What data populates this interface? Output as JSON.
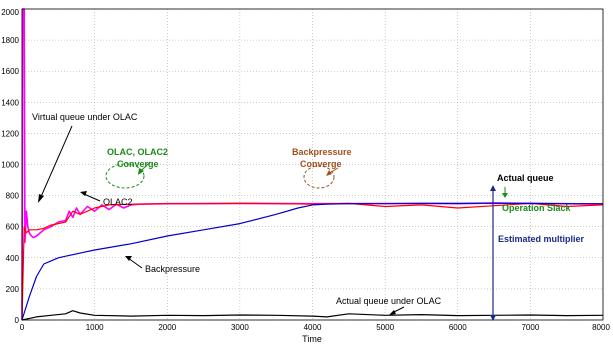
{
  "chart_data": {
    "type": "line",
    "xlabel": "Time",
    "ylabel": "",
    "xlim": [
      0,
      8000
    ],
    "ylim": [
      0,
      2000
    ],
    "xticks": [
      0,
      1000,
      2000,
      3000,
      4000,
      5000,
      6000,
      7000,
      8000
    ],
    "yticks": [
      0,
      200,
      400,
      600,
      800,
      1000,
      1200,
      1400,
      1600,
      1800,
      2000
    ],
    "grid": true,
    "series": [
      {
        "label": "Virtual queue under OLAC",
        "color": "#ff00ff",
        "x": [
          0,
          10,
          30,
          40,
          60,
          80,
          100,
          130,
          160,
          200,
          250,
          300,
          400,
          500,
          600,
          650,
          700,
          750,
          800,
          900,
          1000,
          1100,
          1200,
          1300,
          1400,
          1500,
          1600,
          2000,
          3000,
          4000,
          5000,
          5500,
          6000,
          6500,
          7000,
          7500,
          8000
        ],
        "y": [
          0,
          2000,
          2000,
          500,
          700,
          600,
          560,
          540,
          530,
          540,
          560,
          580,
          600,
          630,
          640,
          700,
          660,
          720,
          680,
          730,
          700,
          740,
          710,
          745,
          720,
          740,
          745,
          748,
          750,
          748,
          749,
          750,
          748,
          752,
          750,
          748,
          745
        ]
      },
      {
        "label": "OLAC2",
        "color": "#ff0000",
        "x": [
          0,
          30,
          60,
          100,
          200,
          300,
          400,
          500,
          600,
          700,
          800,
          1000,
          1200,
          1500,
          2000,
          2500,
          3000,
          3500,
          4000,
          4500,
          5000,
          5500,
          6000,
          6500,
          7000,
          7500,
          8000
        ],
        "y": [
          0,
          600,
          560,
          580,
          580,
          590,
          610,
          620,
          630,
          700,
          680,
          720,
          740,
          745,
          748,
          748,
          750,
          748,
          745,
          750,
          730,
          740,
          720,
          735,
          750,
          730,
          740
        ]
      },
      {
        "label": "Backpressure",
        "color": "#0000cc",
        "x": [
          0,
          100,
          200,
          300,
          400,
          500,
          600,
          700,
          800,
          1000,
          1500,
          2000,
          2500,
          3000,
          3500,
          3800,
          4000,
          4200,
          4500,
          5000,
          5500,
          6000,
          6500,
          7000,
          7500,
          8000
        ],
        "y": [
          0,
          150,
          280,
          360,
          380,
          400,
          410,
          420,
          430,
          450,
          490,
          540,
          580,
          620,
          680,
          720,
          740,
          745,
          748,
          748,
          750,
          750,
          752,
          750,
          748,
          748
        ]
      },
      {
        "label": "Actual queue under OLAC",
        "color": "#000000",
        "x": [
          0,
          200,
          400,
          600,
          700,
          800,
          1000,
          1500,
          2000,
          2500,
          3000,
          3500,
          4000,
          4200,
          4500,
          5000,
          5500,
          6000,
          6500,
          7000,
          7500,
          8000
        ],
        "y": [
          0,
          20,
          30,
          40,
          60,
          45,
          30,
          25,
          30,
          28,
          32,
          30,
          25,
          20,
          40,
          30,
          35,
          28,
          30,
          32,
          28,
          30
        ]
      }
    ]
  },
  "annotations": {
    "virtual_queue": "Virtual queue under OLAC",
    "olac_converge_1": "OLAC, OLAC2",
    "olac_converge_2": "Converge",
    "backpressure_converge_1": "Backpressure",
    "backpressure_converge_2": "Converge",
    "olac2": "OLAC2",
    "backpressure": "Backpressure",
    "actual_queue": "Actual queue",
    "operation_slack": "Operation Slack",
    "estimated_multiplier": "Estimated multiplier",
    "actual_queue_olac": "Actual queue under OLAC"
  },
  "colors": {
    "green": "#1a8a1a",
    "brown": "#a0501e",
    "navy": "#1a2a8a"
  }
}
